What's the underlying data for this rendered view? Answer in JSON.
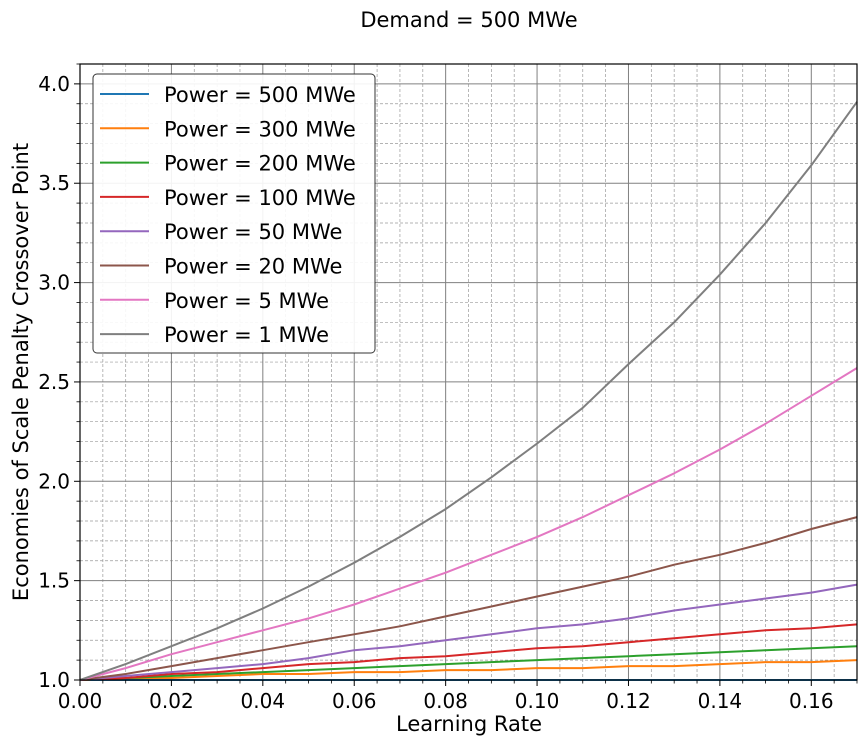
{
  "chart_data": {
    "type": "line",
    "title": "Demand = 500 MWe",
    "xlabel": "Learning Rate",
    "ylabel": "Economies of Scale Penalty Crossover Point",
    "xlim": [
      0,
      0.17
    ],
    "ylim": [
      1.0,
      4.1
    ],
    "xticks": [
      "0.00",
      "0.02",
      "0.04",
      "0.06",
      "0.08",
      "0.10",
      "0.12",
      "0.14",
      "0.16"
    ],
    "yticks": [
      "1.0",
      "1.5",
      "2.0",
      "2.5",
      "3.0",
      "3.5",
      "4.0"
    ],
    "grid": true,
    "minor_grid": true,
    "legend_position": "upper-left",
    "x": [
      0.0,
      0.01,
      0.02,
      0.03,
      0.04,
      0.05,
      0.06,
      0.07,
      0.08,
      0.09,
      0.1,
      0.11,
      0.12,
      0.13,
      0.14,
      0.15,
      0.16,
      0.17
    ],
    "series": [
      {
        "name": "Power = 500 MWe",
        "color": "#1f77b4",
        "values": [
          1.0,
          1.0,
          1.0,
          1.0,
          1.0,
          1.0,
          1.0,
          1.0,
          1.0,
          1.0,
          1.0,
          1.0,
          1.0,
          1.0,
          1.0,
          1.0,
          1.0,
          1.0
        ]
      },
      {
        "name": "Power = 300 MWe",
        "color": "#ff7f0e",
        "values": [
          1.0,
          1.01,
          1.01,
          1.02,
          1.03,
          1.03,
          1.04,
          1.04,
          1.05,
          1.05,
          1.06,
          1.06,
          1.07,
          1.07,
          1.08,
          1.09,
          1.09,
          1.1
        ]
      },
      {
        "name": "Power = 200 MWe",
        "color": "#2ca02c",
        "values": [
          1.0,
          1.01,
          1.02,
          1.03,
          1.04,
          1.05,
          1.06,
          1.07,
          1.08,
          1.09,
          1.1,
          1.11,
          1.12,
          1.13,
          1.14,
          1.15,
          1.16,
          1.17
        ]
      },
      {
        "name": "Power = 100 MWe",
        "color": "#d62728",
        "values": [
          1.0,
          1.01,
          1.03,
          1.04,
          1.06,
          1.08,
          1.09,
          1.11,
          1.12,
          1.14,
          1.16,
          1.17,
          1.19,
          1.21,
          1.23,
          1.25,
          1.26,
          1.28
        ]
      },
      {
        "name": "Power = 50 MWe",
        "color": "#9467bd",
        "values": [
          1.0,
          1.02,
          1.04,
          1.06,
          1.08,
          1.11,
          1.15,
          1.17,
          1.2,
          1.23,
          1.26,
          1.28,
          1.31,
          1.35,
          1.38,
          1.41,
          1.44,
          1.48
        ]
      },
      {
        "name": "Power = 20 MWe",
        "color": "#8c564b",
        "values": [
          1.0,
          1.03,
          1.07,
          1.11,
          1.15,
          1.19,
          1.23,
          1.27,
          1.32,
          1.37,
          1.42,
          1.47,
          1.52,
          1.58,
          1.63,
          1.69,
          1.76,
          1.82
        ]
      },
      {
        "name": "Power = 5 MWe",
        "color": "#e377c2",
        "values": [
          1.0,
          1.06,
          1.13,
          1.19,
          1.25,
          1.31,
          1.38,
          1.46,
          1.54,
          1.63,
          1.72,
          1.82,
          1.93,
          2.04,
          2.16,
          2.29,
          2.43,
          2.57
        ]
      },
      {
        "name": "Power = 1 MWe",
        "color": "#7f7f7f",
        "values": [
          1.0,
          1.08,
          1.17,
          1.26,
          1.36,
          1.47,
          1.59,
          1.72,
          1.86,
          2.02,
          2.19,
          2.37,
          2.59,
          2.8,
          3.04,
          3.3,
          3.59,
          3.91
        ]
      }
    ]
  }
}
